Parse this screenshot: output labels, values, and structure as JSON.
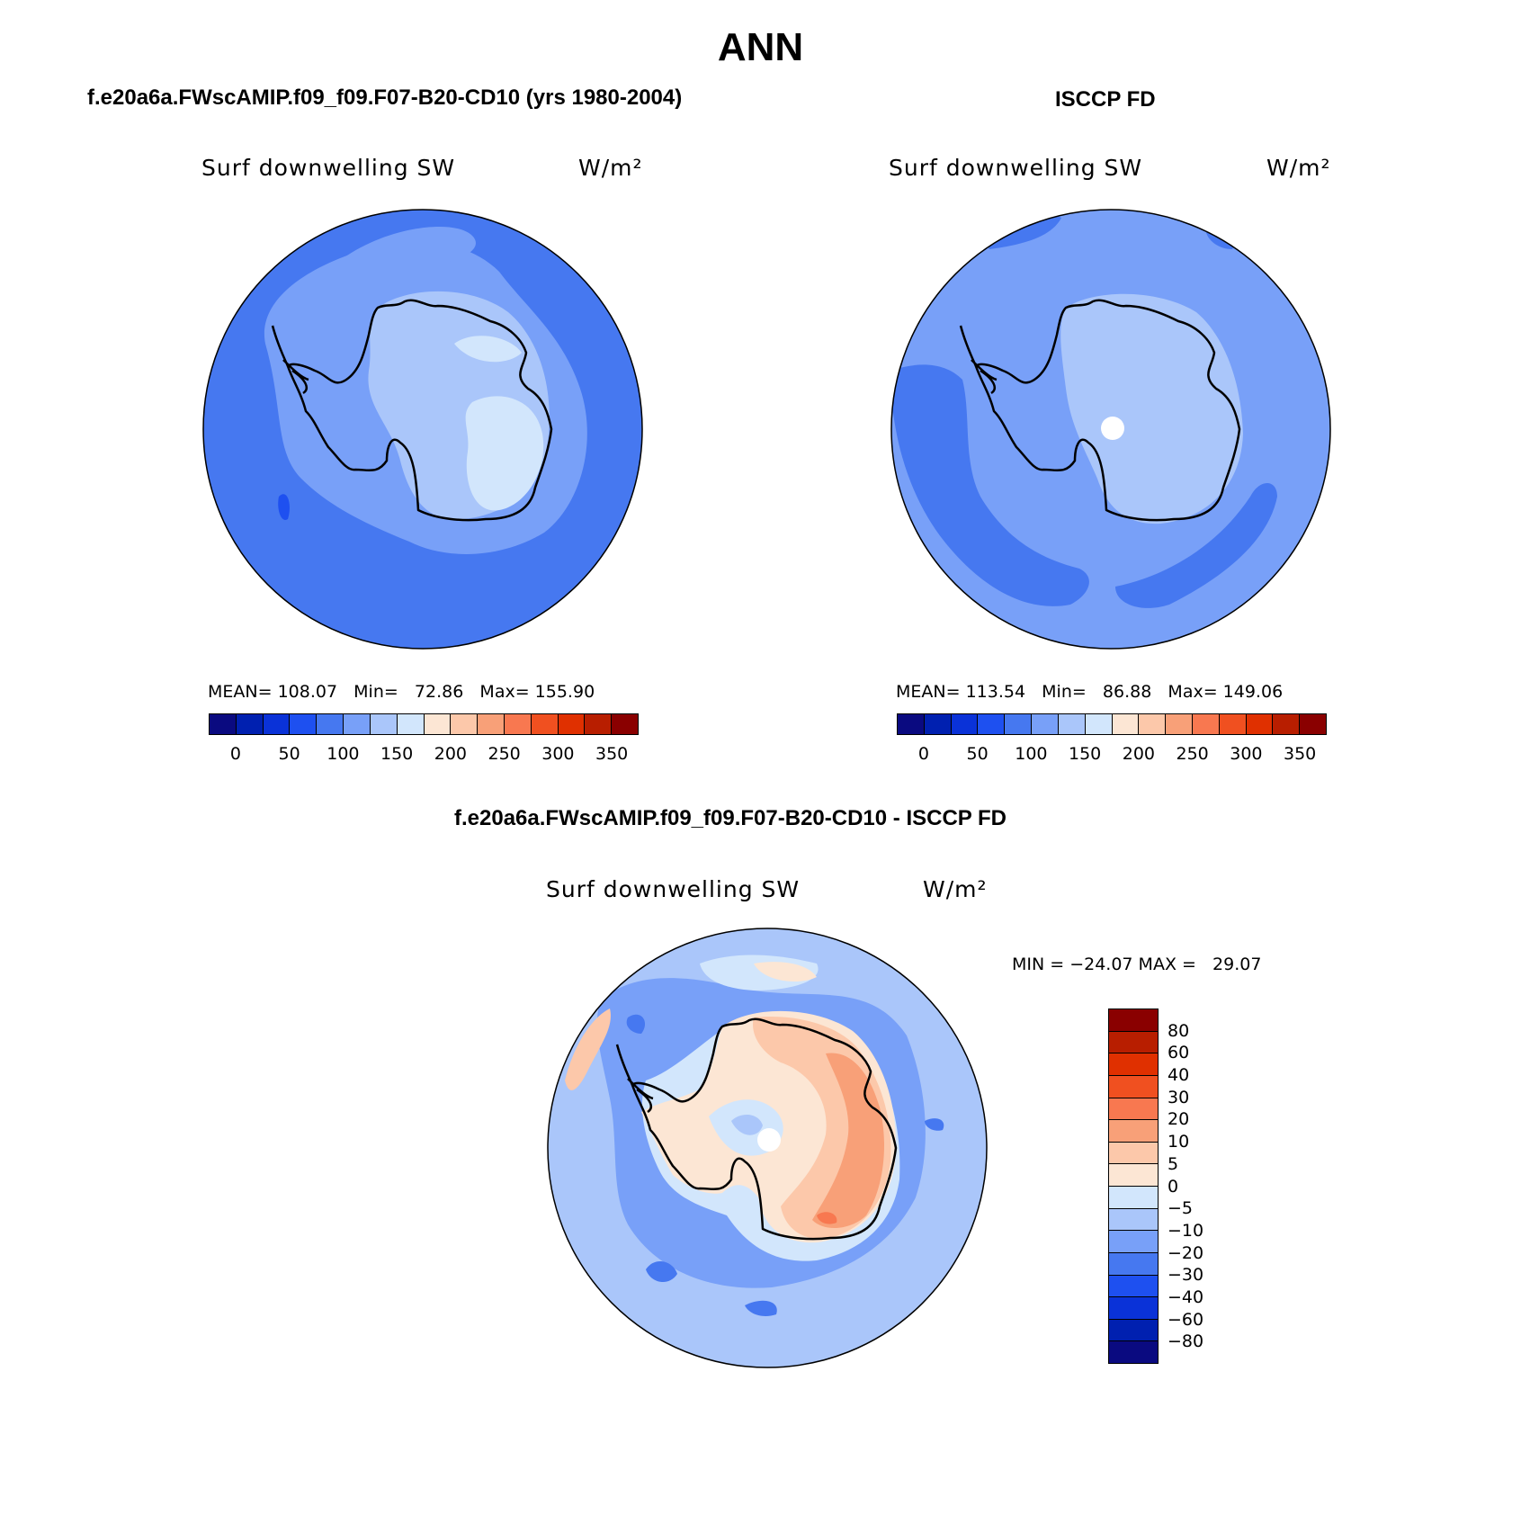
{
  "title": "ANN",
  "panels": {
    "model": {
      "title": "f.e20a6a.FWscAMIP.f09_f09.F07-B20-CD10 (yrs 1980-2004)",
      "field": "Surf downwelling SW",
      "units": "W/m²",
      "stats": "MEAN= 108.07   Min=   72.86   Max= 155.90"
    },
    "obs": {
      "title": "ISCCP FD",
      "field": "Surf downwelling SW",
      "units": "W/m²",
      "stats": "MEAN= 113.54   Min=   86.88   Max= 149.06"
    },
    "diff": {
      "title": "f.e20a6a.FWscAMIP.f09_f09.F07-B20-CD10 - ISCCP FD",
      "field": "Surf downwelling SW",
      "units": "W/m²",
      "stats": "MIN = −24.07 MAX =   29.07"
    }
  },
  "colorbar_main": {
    "colors": [
      "#0a0a80",
      "#0020b0",
      "#0a32d8",
      "#1e50f0",
      "#4678f0",
      "#78a0f8",
      "#aac6fa",
      "#d2e6fc",
      "#fce6d4",
      "#fcc8aa",
      "#f8a078",
      "#f87850",
      "#f05020",
      "#e03000",
      "#b81e00",
      "#8a0000"
    ],
    "tick_labels": [
      "0",
      "50",
      "100",
      "150",
      "200",
      "250",
      "300",
      "350"
    ]
  },
  "colorbar_diff": {
    "colors": [
      "#8a0000",
      "#b81e00",
      "#e03000",
      "#f05020",
      "#f87850",
      "#f8a078",
      "#fcc8aa",
      "#fce6d4",
      "#d2e6fc",
      "#aac6fa",
      "#78a0f8",
      "#4678f0",
      "#1e50f0",
      "#0a32d8",
      "#0020b0",
      "#0a0a80"
    ],
    "tick_labels": [
      "80",
      "60",
      "40",
      "30",
      "20",
      "10",
      "5",
      "0",
      "−5",
      "−10",
      "−20",
      "−30",
      "−40",
      "−60",
      "−80"
    ]
  },
  "map_colors": {
    "deep_blue": "#4678f0",
    "mid_blue": "#78a0f8",
    "light_blue": "#aac6fa",
    "pale_blue": "#d2e6fc",
    "pale_orange": "#fce6d4",
    "light_orange": "#fcc8aa",
    "orange": "#f8a078",
    "dark_orange": "#f87850",
    "strong_blue": "#1e50f0"
  }
}
